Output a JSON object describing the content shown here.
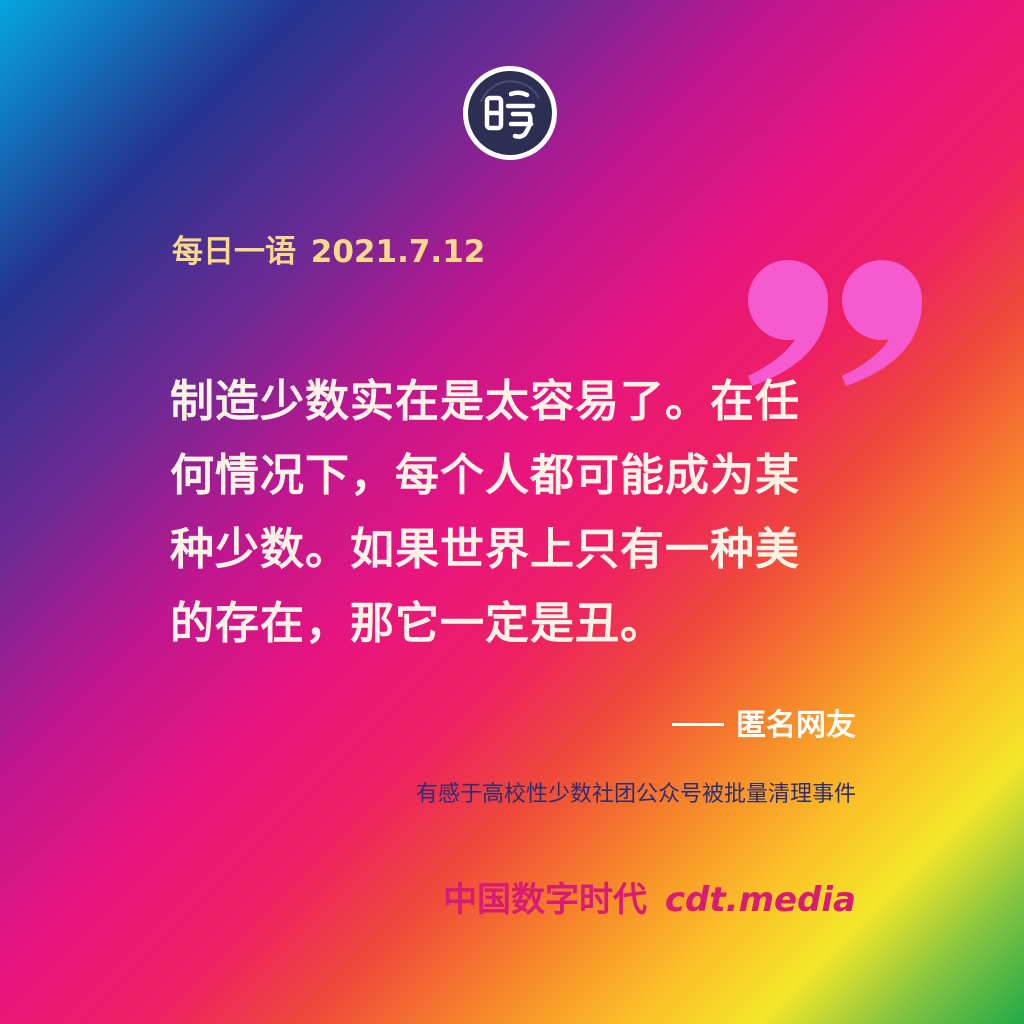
{
  "logo": {
    "icon": "seal-logo-icon",
    "char": "時",
    "colors": {
      "fill": "#2c2f52",
      "ring": "#ffffff"
    }
  },
  "header": {
    "label": "每日一语",
    "date": "2021.7.12",
    "color": "#f6d989"
  },
  "quote": {
    "mark_icon": "closing-quote-icon",
    "mark_color": "#f55bcf",
    "lines": [
      "制造少数实在是太容易了。在任",
      "何情况下，每个人都可能成为某",
      "种少数。如果世界上只有一种美",
      "的存在，那它一定是丑。"
    ],
    "color": "#fbf3e6"
  },
  "author": {
    "name": "匿名网友"
  },
  "note": {
    "text": "有感于高校性少数社团公众号被批量清理事件"
  },
  "brand": {
    "name": "中国数字时代",
    "site": "cdt.media",
    "color": "#d81b73"
  }
}
